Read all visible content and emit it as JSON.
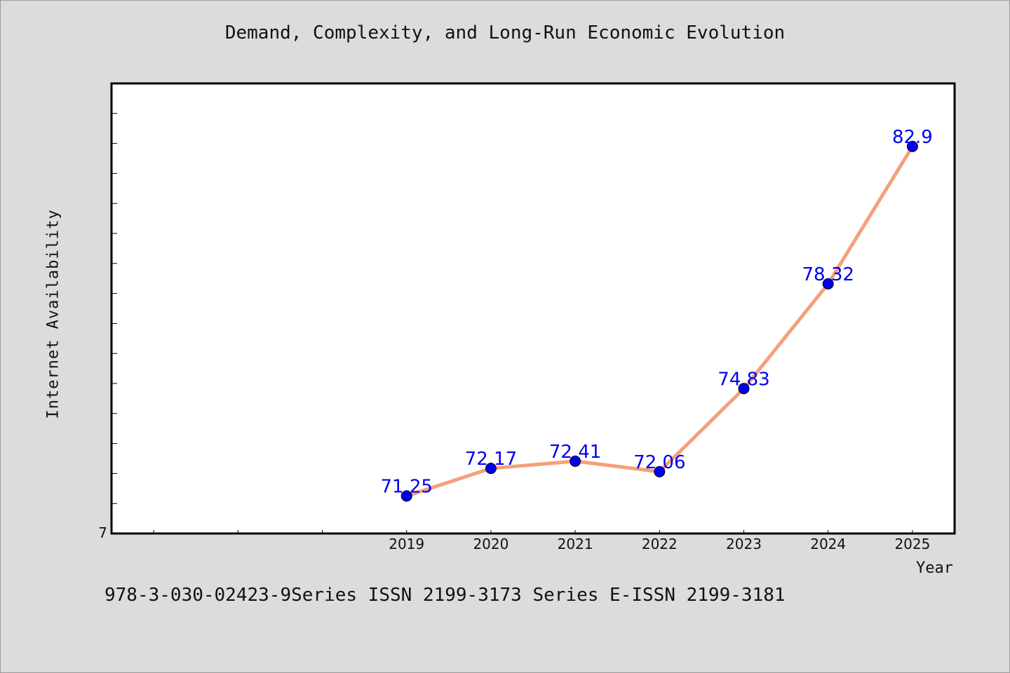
{
  "title": "Demand, Complexity, and Long-Run Economic Evolution",
  "footer": "978-3-030-02423-9Series ISSN 2199-3173 Series E-ISSN 2199-3181",
  "colors": {
    "background": "#dcdcdc",
    "plot_background": "#ffffff",
    "line": "#f4a07a",
    "marker": "#0000ee",
    "data_label": "#0000ee"
  },
  "chart_data": {
    "type": "line",
    "title": "Demand, Complexity, and Long-Run Economic Evolution",
    "xlabel": "Year",
    "ylabel": "Internet Availability",
    "x": [
      "2019",
      "2020",
      "2021",
      "2022",
      "2023",
      "2024",
      "2025"
    ],
    "x_numeric": [
      2019,
      2020,
      2021,
      2022,
      2023,
      2024,
      2025
    ],
    "xlim": [
      2015.5,
      2025.5
    ],
    "y_tick_label": "7",
    "ylim": [
      70,
      85
    ],
    "series": [
      {
        "values": [
          71.25,
          72.17,
          72.41,
          72.06,
          74.83,
          78.32,
          82.9
        ],
        "labels": [
          "71.25",
          "72.17",
          "72.41",
          "72.06",
          "74.83",
          "78.32",
          "82.9"
        ]
      }
    ],
    "grid": false,
    "legend": "none",
    "markers": "circle"
  }
}
